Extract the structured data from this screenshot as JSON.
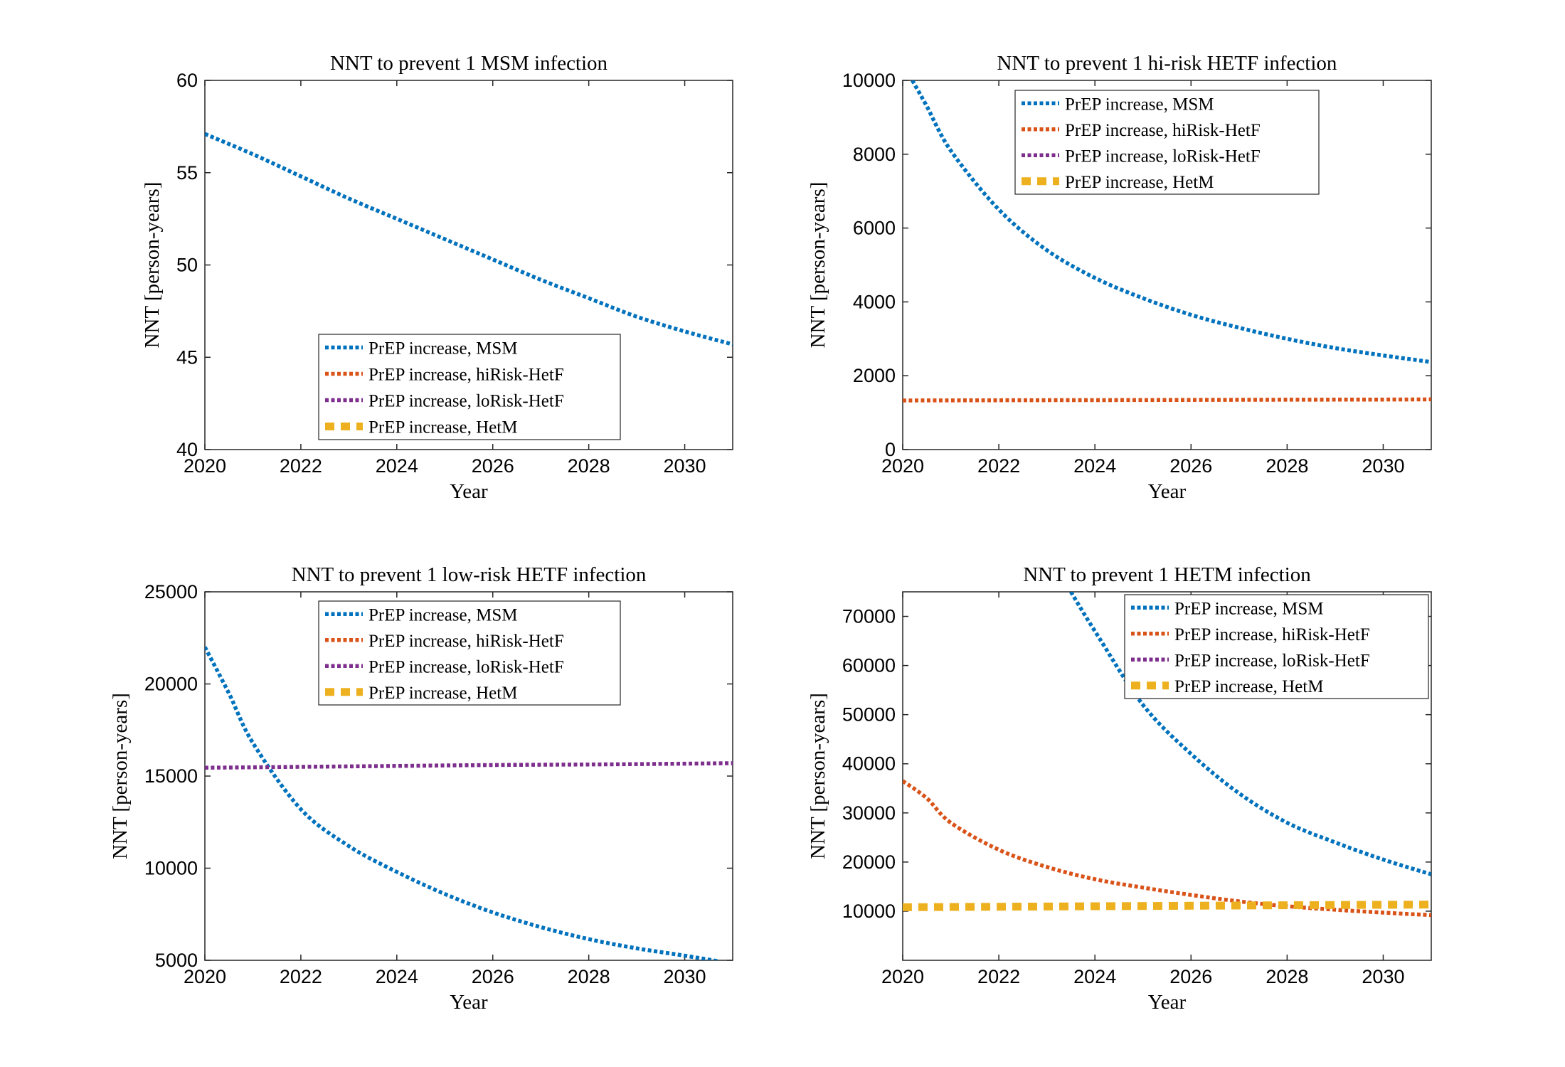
{
  "chart_data": [
    {
      "type": "line",
      "title": "NNT to prevent 1 MSM infection",
      "xlabel": "Year",
      "ylabel": "NNT [person-years]",
      "xlim": [
        2020,
        2031
      ],
      "ylim": [
        40,
        60
      ],
      "xticks": [
        "2020",
        "2022",
        "2024",
        "2026",
        "2028",
        "2030"
      ],
      "yticks": [
        "40",
        "45",
        "50",
        "55",
        "60"
      ],
      "legend_position": "lower-center",
      "legend": [
        {
          "label": "PrEP increase, MSM",
          "color": "#0072BD"
        },
        {
          "label": "PrEP increase, hiRisk-HetF",
          "color": "#D95319"
        },
        {
          "label": "PrEP increase, loRisk-HetF",
          "color": "#7E2F8E"
        },
        {
          "label": "PrEP increase, HetM",
          "color": "#EDB120"
        }
      ],
      "series": [
        {
          "name": "PrEP increase, MSM",
          "color": "#0072BD",
          "x": [
            2020,
            2021,
            2022,
            2023,
            2024,
            2025,
            2026,
            2027,
            2028,
            2029,
            2030,
            2031
          ],
          "y": [
            57.1,
            56.0,
            54.8,
            53.6,
            52.5,
            51.4,
            50.3,
            49.2,
            48.2,
            47.2,
            46.4,
            45.7
          ]
        }
      ]
    },
    {
      "type": "line",
      "title": "NNT to prevent 1 hi-risk HETF infection",
      "xlabel": "Year",
      "ylabel": "NNT [person-years]",
      "xlim": [
        2020,
        2031
      ],
      "ylim": [
        0,
        10000
      ],
      "xticks": [
        "2020",
        "2022",
        "2024",
        "2026",
        "2028",
        "2030"
      ],
      "yticks": [
        "0",
        "2000",
        "4000",
        "6000",
        "8000",
        "10000"
      ],
      "legend_position": "top-center",
      "legend": [
        {
          "label": "PrEP increase, MSM",
          "color": "#0072BD"
        },
        {
          "label": "PrEP increase, hiRisk-HetF",
          "color": "#D95319"
        },
        {
          "label": "PrEP increase, loRisk-HetF",
          "color": "#7E2F8E"
        },
        {
          "label": "PrEP increase, HetM",
          "color": "#EDB120"
        }
      ],
      "series": [
        {
          "name": "PrEP increase, MSM",
          "color": "#0072BD",
          "x": [
            2020.2,
            2020.5,
            2021,
            2022,
            2023,
            2024,
            2025,
            2026,
            2027,
            2028,
            2029,
            2030,
            2031
          ],
          "y": [
            10000,
            9300,
            8100,
            6500,
            5400,
            4650,
            4100,
            3650,
            3300,
            3000,
            2750,
            2550,
            2370
          ]
        },
        {
          "name": "PrEP increase, hiRisk-HetF",
          "color": "#D95319",
          "x": [
            2020,
            2022,
            2024,
            2026,
            2028,
            2030,
            2031
          ],
          "y": [
            1330,
            1335,
            1340,
            1345,
            1350,
            1355,
            1360
          ]
        }
      ]
    },
    {
      "type": "line",
      "title": "NNT to prevent 1 low-risk HETF infection",
      "xlabel": "Year",
      "ylabel": "NNT [person-years]",
      "xlim": [
        2020,
        2031
      ],
      "ylim": [
        5000,
        25000
      ],
      "xticks": [
        "2020",
        "2022",
        "2024",
        "2026",
        "2028",
        "2030"
      ],
      "yticks": [
        "5000",
        "10000",
        "15000",
        "20000",
        "25000"
      ],
      "legend_position": "top-center",
      "legend": [
        {
          "label": "PrEP increase, MSM",
          "color": "#0072BD"
        },
        {
          "label": "PrEP increase, hiRisk-HetF",
          "color": "#D95319"
        },
        {
          "label": "PrEP increase, loRisk-HetF",
          "color": "#7E2F8E"
        },
        {
          "label": "PrEP increase, HetM",
          "color": "#EDB120"
        }
      ],
      "series": [
        {
          "name": "PrEP increase, MSM",
          "color": "#0072BD",
          "x": [
            2020,
            2020.5,
            2021,
            2022,
            2023,
            2024,
            2025,
            2026,
            2027,
            2028,
            2029,
            2030,
            2030.7
          ],
          "y": [
            22000,
            19500,
            16800,
            13200,
            11200,
            9800,
            8600,
            7600,
            6800,
            6150,
            5650,
            5250,
            4950
          ]
        },
        {
          "name": "PrEP increase, loRisk-HetF",
          "color": "#7E2F8E",
          "x": [
            2020,
            2022,
            2024,
            2026,
            2028,
            2030,
            2031
          ],
          "y": [
            15450,
            15500,
            15550,
            15600,
            15630,
            15670,
            15700
          ]
        }
      ]
    },
    {
      "type": "line",
      "title": "NNT to prevent 1 HETM infection",
      "xlabel": "Year",
      "ylabel": "NNT [person-years]",
      "xlim": [
        2020,
        2031
      ],
      "ylim": [
        0,
        75000
      ],
      "xticks": [
        "2020",
        "2022",
        "2024",
        "2026",
        "2028",
        "2030"
      ],
      "yticks": [
        "10000",
        "20000",
        "30000",
        "40000",
        "50000",
        "60000",
        "70000"
      ],
      "legend_position": "top-right",
      "legend": [
        {
          "label": "PrEP increase, MSM",
          "color": "#0072BD"
        },
        {
          "label": "PrEP increase, hiRisk-HetF",
          "color": "#D95319"
        },
        {
          "label": "PrEP increase, loRisk-HetF",
          "color": "#7E2F8E"
        },
        {
          "label": "PrEP increase, HetM",
          "color": "#EDB120"
        }
      ],
      "series": [
        {
          "name": "PrEP increase, MSM",
          "color": "#0072BD",
          "x": [
            2023.5,
            2024,
            2025,
            2026,
            2027,
            2028,
            2029,
            2030,
            2031
          ],
          "y": [
            75000,
            67000,
            52000,
            42000,
            34000,
            28000,
            24000,
            20500,
            17500
          ]
        },
        {
          "name": "PrEP increase, hiRisk-HetF",
          "color": "#D95319",
          "x": [
            2020,
            2020.5,
            2021,
            2022,
            2023,
            2024,
            2025,
            2026,
            2027,
            2028,
            2029,
            2030,
            2031
          ],
          "y": [
            36500,
            33000,
            28000,
            22500,
            19000,
            16500,
            14800,
            13300,
            12000,
            11000,
            10300,
            9700,
            9200
          ]
        },
        {
          "name": "PrEP increase, HetM",
          "color": "#EDB120",
          "width": "thick",
          "x": [
            2020,
            2022,
            2024,
            2026,
            2028,
            2030,
            2031
          ],
          "y": [
            10800,
            10900,
            11000,
            11100,
            11200,
            11300,
            11350
          ]
        }
      ]
    }
  ]
}
